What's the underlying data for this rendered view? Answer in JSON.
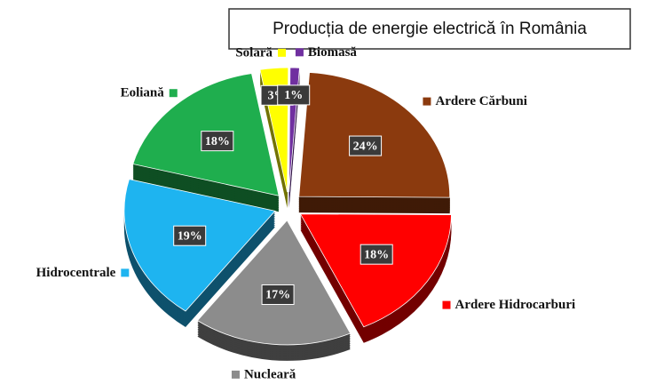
{
  "chart_data": {
    "type": "pie",
    "title": "Producția de energie electrică în România",
    "categories": [
      "Ardere Cărbuni",
      "Ardere Hidrocarburi",
      "Nucleară",
      "Hidrocentrale",
      "Eoliană",
      "Solară",
      "Biomasă"
    ],
    "values": [
      24,
      18,
      17,
      19,
      18,
      3,
      1
    ],
    "value_labels": [
      "24%",
      "18%",
      "17%",
      "19%",
      "18%",
      "3%",
      "1%"
    ],
    "colors": [
      "#8b3a0e",
      "#ff0000",
      "#8c8c8c",
      "#1eb4f0",
      "#1fae4e",
      "#ffff00",
      "#7030a0"
    ]
  }
}
